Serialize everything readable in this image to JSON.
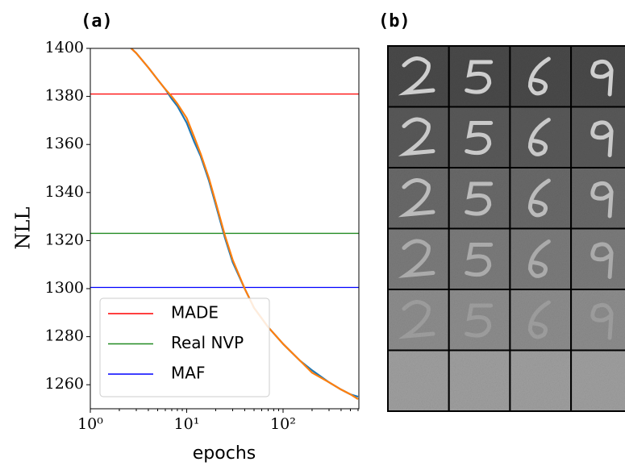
{
  "chart_data": {
    "type": "line",
    "panel_label": "(a)",
    "xlabel": "epochs",
    "ylabel": "NLL",
    "xscale": "log",
    "xlim": [
      1,
      612
    ],
    "ylim": [
      1250,
      1400
    ],
    "xticks": [
      {
        "value": 1,
        "label": "10⁰"
      },
      {
        "value": 10,
        "label": "10¹"
      },
      {
        "value": 100,
        "label": "10²"
      }
    ],
    "yticks": [
      1260,
      1280,
      1300,
      1320,
      1340,
      1360,
      1380,
      1400
    ],
    "x": [
      2.5,
      3,
      4,
      5,
      6,
      7,
      8,
      10,
      12,
      14,
      17,
      20,
      25,
      30,
      40,
      50,
      70,
      100,
      150,
      200,
      300,
      400,
      500,
      600
    ],
    "series": [
      {
        "color": "#1f77b4",
        "values": [
          1401,
          1398,
          1392,
          1387,
          1383,
          1379,
          1376,
          1369,
          1361,
          1355,
          1345,
          1335,
          1321,
          1311,
          1300,
          1292,
          1284,
          1277,
          1270,
          1266,
          1261,
          1258,
          1256,
          1255
        ]
      },
      {
        "color": "#ff7f0e",
        "values": [
          1401,
          1398,
          1392,
          1387,
          1383,
          1380,
          1377,
          1371,
          1363,
          1356,
          1346,
          1336,
          1322,
          1312,
          1300,
          1292,
          1284,
          1277,
          1270,
          1265,
          1261,
          1258,
          1256,
          1254
        ]
      }
    ],
    "hlines": [
      {
        "name": "MADE",
        "color": "#ff0000",
        "value": 1381
      },
      {
        "name": "Real NVP",
        "color": "#228b22",
        "value": 1323
      },
      {
        "name": "MAF",
        "color": "#0000ff",
        "value": 1300.5
      }
    ],
    "legend": "lower left"
  },
  "image_panel": {
    "panel_label": "(b)"
  }
}
